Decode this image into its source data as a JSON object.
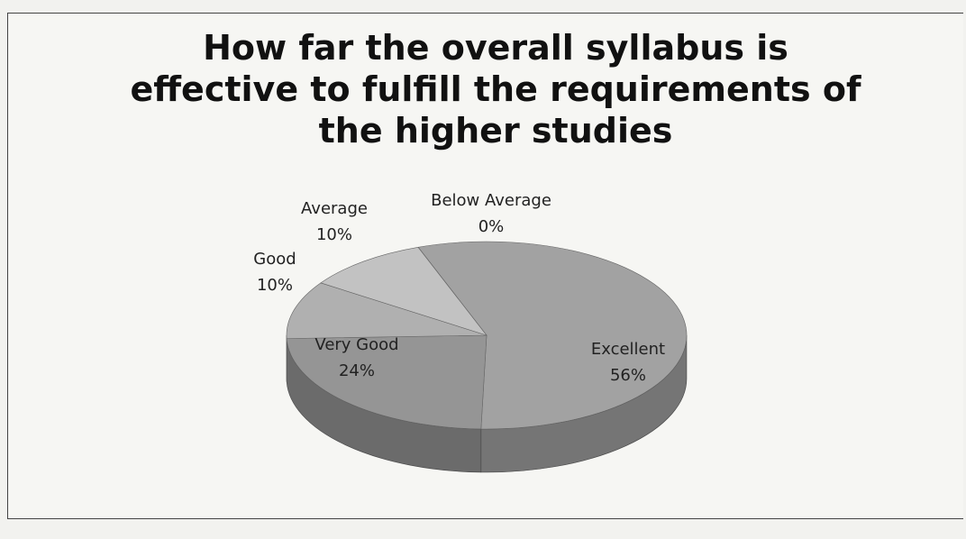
{
  "chart_data": {
    "type": "pie",
    "title": "How far the overall syllabus is effective to fulfill the requirements of the higher studies",
    "categories": [
      "Excellent",
      "Very Good",
      "Good",
      "Average",
      "Below Average"
    ],
    "values": [
      56,
      24,
      10,
      10,
      0
    ],
    "value_labels": [
      "56%",
      "24%",
      "10%",
      "10%",
      "0%"
    ],
    "colors": [
      "#a2a2a2",
      "#959595",
      "#b0b0b0",
      "#c2c2c2",
      "#8a8a8a"
    ]
  }
}
